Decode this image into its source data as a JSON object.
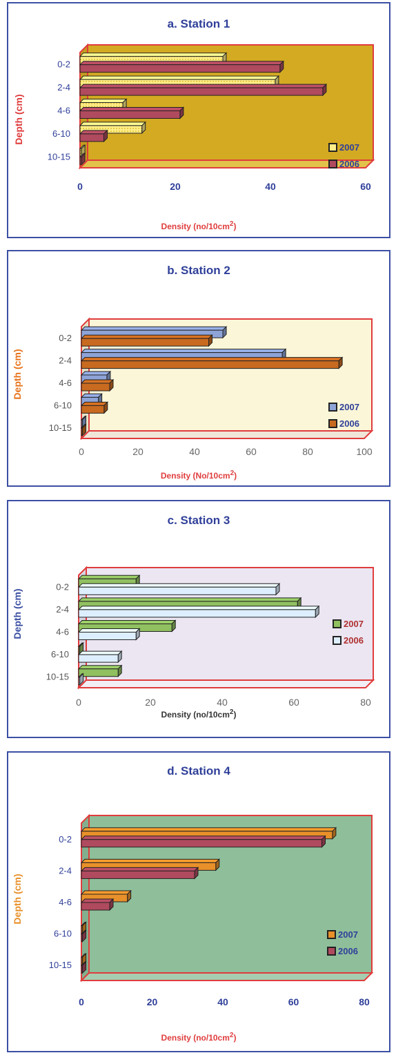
{
  "chart_data": [
    {
      "type": "bar",
      "orientation": "horizontal",
      "title": "a. Station 1",
      "xlabel": "Density (no/10cm",
      "xlabel_sup": "2",
      "xlabel_close": ")",
      "ylabel": "Depth (cm)",
      "categories": [
        "0-2",
        "2-4",
        "4-6",
        "6-10",
        "10-15"
      ],
      "xlim": [
        0,
        60
      ],
      "xticks": [
        "0",
        "20",
        "40",
        "60"
      ],
      "series": [
        {
          "name": "2007",
          "color": "#ffee88",
          "pattern": "dots",
          "values": [
            30,
            41,
            9,
            13,
            0.3
          ]
        },
        {
          "name": "2006",
          "color": "#b04a5e",
          "pattern": "none",
          "values": [
            42,
            51,
            21,
            5,
            0.3
          ]
        }
      ],
      "colors": {
        "wall": "#d4aa22",
        "floor": "#e2c24a",
        "frame": "#e03c3c",
        "ylabel": "#e03c3c",
        "xlabel": "#e03c3c",
        "tick": "#2f3f99",
        "cat": "#2f3f99"
      }
    },
    {
      "type": "bar",
      "orientation": "horizontal",
      "title": "b. Station 2",
      "xlabel": "Density (No/10cm",
      "xlabel_sup": "2",
      "xlabel_close": ")",
      "ylabel": "Depth (cm)",
      "categories": [
        "0-2",
        "2-4",
        "4-6",
        "6-10",
        "10-15"
      ],
      "xlim": [
        0,
        100
      ],
      "xticks": [
        "0",
        "20",
        "40",
        "60",
        "80",
        "100"
      ],
      "series": [
        {
          "name": "2007",
          "color": "#8ea4d8",
          "pattern": "none",
          "values": [
            50,
            71,
            9,
            6,
            0.3
          ]
        },
        {
          "name": "2006",
          "color": "#c86a20",
          "pattern": "none",
          "values": [
            45,
            91,
            10,
            8,
            0.3
          ]
        }
      ],
      "colors": {
        "wall": "#fbf6d8",
        "floor": "#f0e6d8",
        "frame": "#e03c3c",
        "ylabel": "#e8721a",
        "xlabel": "#e03c3c",
        "tick": "#666666",
        "cat": "#555555"
      }
    },
    {
      "type": "bar",
      "orientation": "horizontal",
      "title": "c. Station 3",
      "xlabel": "Density (no/10cm",
      "xlabel_sup": "2",
      "xlabel_close": ")",
      "ylabel": "Depth (cm)",
      "categories": [
        "0-2",
        "2-4",
        "4-6",
        "6-10",
        "10-15"
      ],
      "xlim": [
        0,
        80
      ],
      "xticks": [
        "0",
        "20",
        "40",
        "60",
        "80"
      ],
      "series": [
        {
          "name": "2007",
          "color": "#90c060",
          "pattern": "none",
          "values": [
            16,
            61,
            26,
            0.3,
            11
          ]
        },
        {
          "name": "2006",
          "color": "#ddeeff",
          "pattern": "none",
          "values": [
            55,
            66,
            16,
            11,
            0.3
          ]
        }
      ],
      "colors": {
        "wall": "#ebe6f2",
        "floor": "#f2eef6",
        "frame": "#e03c3c",
        "ylabel": "#3b4fa3",
        "xlabel": "#333333",
        "tick": "#666666",
        "cat": "#555555"
      }
    },
    {
      "type": "bar",
      "orientation": "horizontal",
      "title": "d. Station 4",
      "xlabel": "Density (no/10cm",
      "xlabel_sup": "2",
      "xlabel_close": ")",
      "ylabel": "Depth (cm)",
      "categories": [
        "0-2",
        "2-4",
        "4-6",
        "6-10",
        "10-15"
      ],
      "xlim": [
        0,
        80
      ],
      "xticks": [
        "0",
        "20",
        "40",
        "60",
        "80"
      ],
      "series": [
        {
          "name": "2007",
          "color": "#e8902a",
          "pattern": "none",
          "values": [
            71,
            38,
            13,
            0.3,
            0.3
          ]
        },
        {
          "name": "2006",
          "color": "#b04a5e",
          "pattern": "none",
          "values": [
            68,
            32,
            8,
            0.3,
            0.3
          ]
        }
      ],
      "colors": {
        "wall": "#8fbe9a",
        "floor": "#a7cdb0",
        "frame": "#e03c3c",
        "ylabel": "#e8902a",
        "xlabel": "#e03c3c",
        "tick": "#2f3f99",
        "cat": "#2f3f99"
      }
    }
  ]
}
